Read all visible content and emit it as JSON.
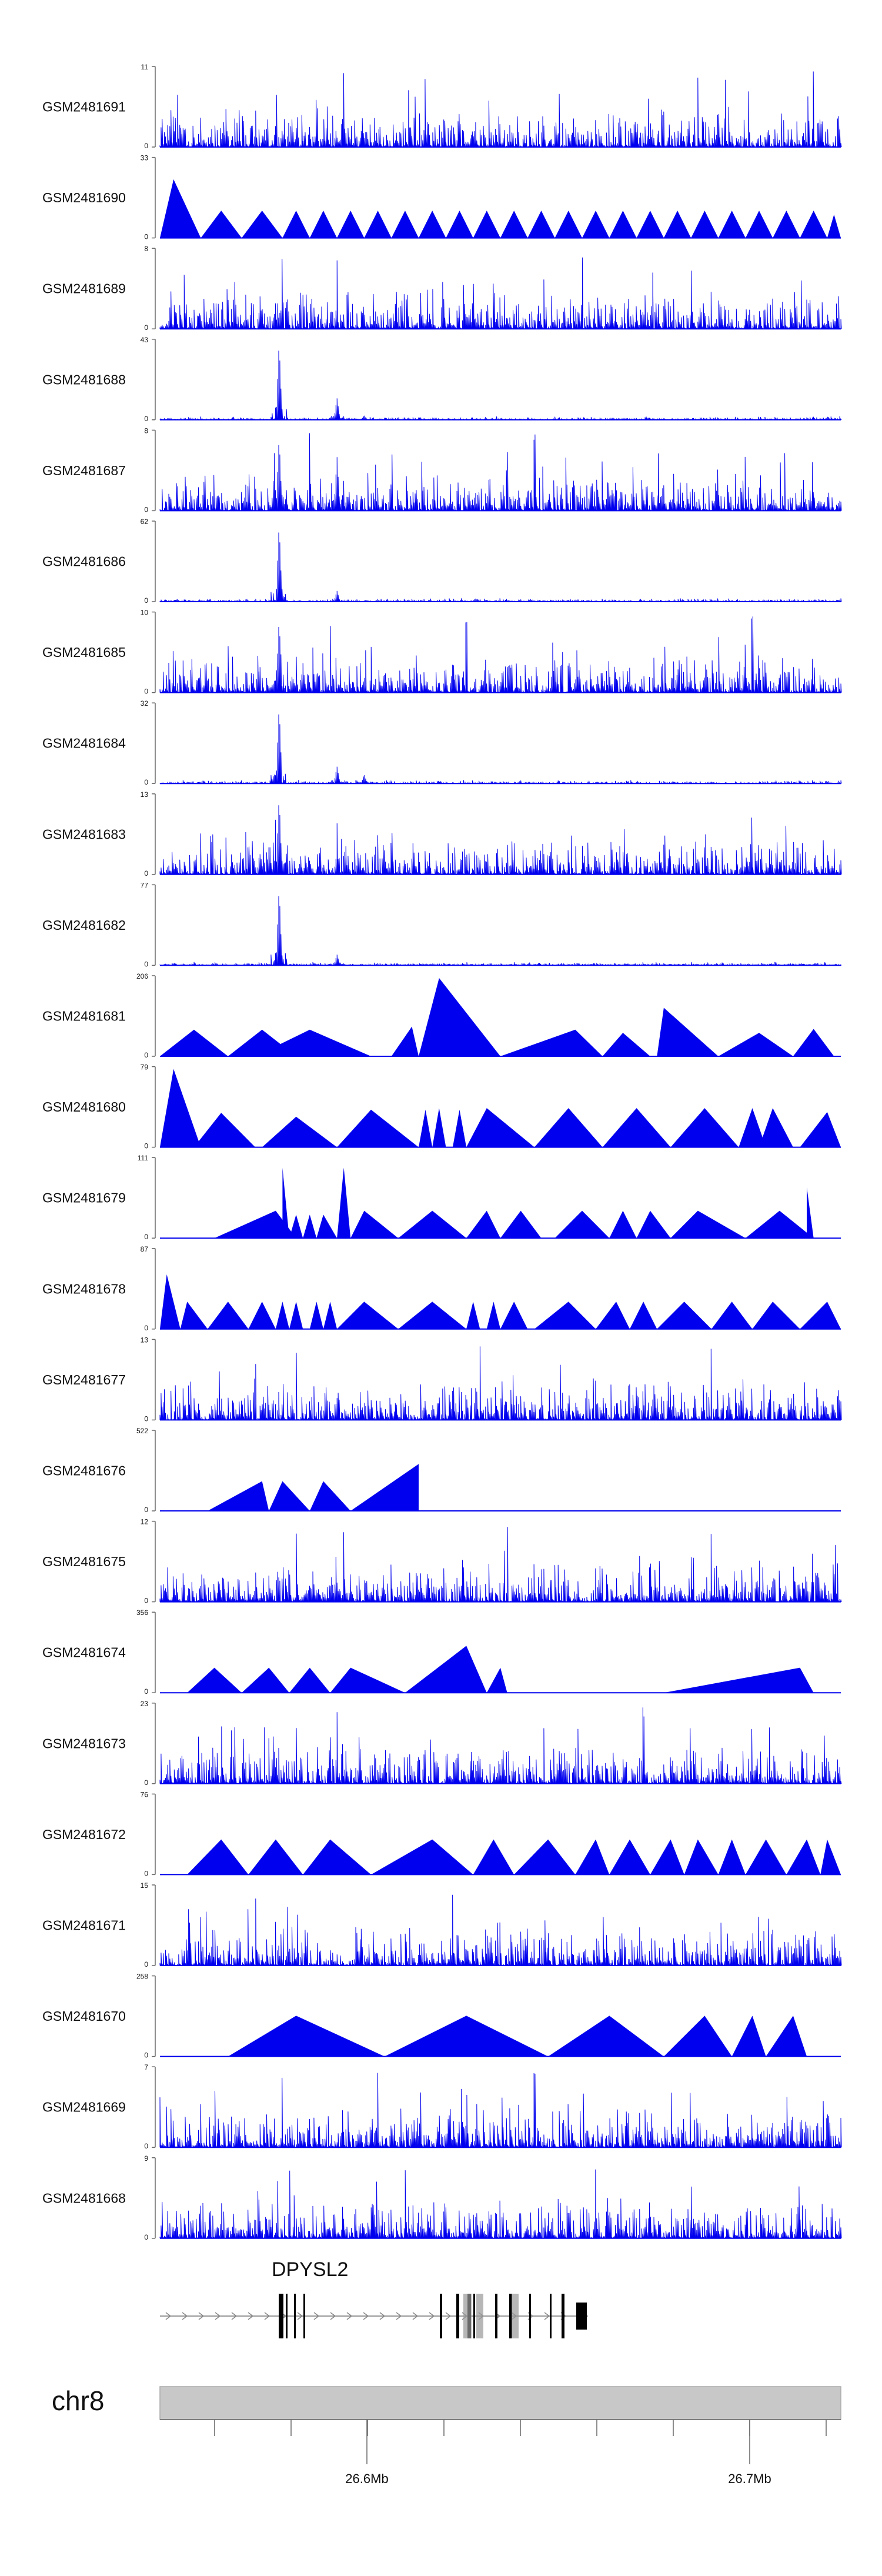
{
  "chart_data": {
    "type": "area",
    "chromosome": "chr8",
    "x_ticks": [
      "26.6Mb",
      "26.7Mb"
    ],
    "gene": {
      "name": "DPYSL2",
      "strand": "+",
      "exon_count": 14
    },
    "colors": {
      "signal": "#0000ee",
      "axis": "#666666",
      "text": "#111111",
      "ideogram": "#c8c8c8",
      "exon": "#000000"
    },
    "tracks": [
      {
        "name": "GSM2481691",
        "max": "11",
        "style": "dense",
        "peaks": [],
        "spikes": [
          0.39,
          0.79,
          0.83,
          0.96,
          0.27
        ]
      },
      {
        "name": "GSM2481690",
        "max": "33",
        "style": "triangles",
        "peaks": [],
        "spikes": []
      },
      {
        "name": "GSM2481689",
        "max": "8",
        "style": "dense",
        "peaks": [],
        "spikes": [
          0.26,
          0.18,
          0.62
        ]
      },
      {
        "name": "GSM2481688",
        "max": "43",
        "style": "peaks",
        "peaks": [
          [
            0.175,
            1.0
          ],
          [
            0.26,
            0.28
          ],
          [
            0.3,
            0.06
          ]
        ],
        "spikes": []
      },
      {
        "name": "GSM2481687",
        "max": "8",
        "style": "dense",
        "peaks": [
          [
            0.175,
            0.95
          ],
          [
            0.26,
            0.7
          ]
        ],
        "spikes": [
          0.22,
          0.55
        ]
      },
      {
        "name": "GSM2481686",
        "max": "62",
        "style": "peaks",
        "peaks": [
          [
            0.175,
            1.0
          ],
          [
            0.26,
            0.14
          ]
        ],
        "spikes": []
      },
      {
        "name": "GSM2481685",
        "max": "10",
        "style": "dense",
        "peaks": [
          [
            0.175,
            0.95
          ]
        ],
        "spikes": [
          0.25,
          0.45,
          0.87
        ]
      },
      {
        "name": "GSM2481684",
        "max": "32",
        "style": "peaks",
        "peaks": [
          [
            0.175,
            1.0
          ],
          [
            0.26,
            0.22
          ],
          [
            0.3,
            0.12
          ]
        ],
        "spikes": []
      },
      {
        "name": "GSM2481683",
        "max": "13",
        "style": "dense",
        "peaks": [
          [
            0.175,
            1.0
          ],
          [
            0.26,
            0.3
          ]
        ],
        "spikes": []
      },
      {
        "name": "GSM2481682",
        "max": "77",
        "style": "peaks",
        "peaks": [
          [
            0.175,
            1.0
          ],
          [
            0.26,
            0.14
          ]
        ],
        "spikes": []
      },
      {
        "name": "GSM2481681",
        "max": "206",
        "style": "triangles",
        "peaks": [],
        "spikes": []
      },
      {
        "name": "GSM2481680",
        "max": "79",
        "style": "triangles",
        "peaks": [],
        "spikes": []
      },
      {
        "name": "GSM2481679",
        "max": "111",
        "style": "triangles",
        "peaks": [],
        "spikes": []
      },
      {
        "name": "GSM2481678",
        "max": "87",
        "style": "triangles",
        "peaks": [],
        "spikes": []
      },
      {
        "name": "GSM2481677",
        "max": "13",
        "style": "dense",
        "peaks": [],
        "spikes": [
          0.2,
          0.81,
          0.47
        ]
      },
      {
        "name": "GSM2481676",
        "max": "522",
        "style": "triangles",
        "peaks": [],
        "spikes": []
      },
      {
        "name": "GSM2481675",
        "max": "12",
        "style": "dense",
        "peaks": [],
        "spikes": [
          0.2,
          0.27,
          0.51,
          0.81
        ]
      },
      {
        "name": "GSM2481674",
        "max": "356",
        "style": "triangles",
        "peaks": [],
        "spikes": []
      },
      {
        "name": "GSM2481673",
        "max": "23",
        "style": "dense",
        "peaks": [],
        "spikes": [
          0.26,
          0.71
        ]
      },
      {
        "name": "GSM2481672",
        "max": "76",
        "style": "triangles",
        "peaks": [],
        "spikes": []
      },
      {
        "name": "GSM2481671",
        "max": "15",
        "style": "dense",
        "peaks": [],
        "spikes": [
          0.14,
          0.43
        ]
      },
      {
        "name": "GSM2481670",
        "max": "258",
        "style": "triangles",
        "peaks": [],
        "spikes": []
      },
      {
        "name": "GSM2481669",
        "max": "7",
        "style": "dense",
        "peaks": [],
        "spikes": [
          0.18,
          0.32,
          0.55
        ]
      },
      {
        "name": "GSM2481668",
        "max": "9",
        "style": "dense",
        "peaks": [],
        "spikes": [
          0.19,
          0.36,
          0.64
        ]
      }
    ]
  }
}
